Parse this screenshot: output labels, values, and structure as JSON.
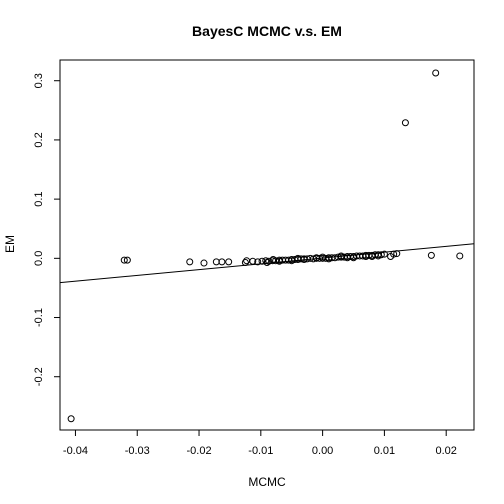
{
  "chart_data": {
    "type": "scatter",
    "title": "BayesC MCMC v.s. EM",
    "xlabel": "MCMC",
    "ylabel": "EM",
    "xlim": [
      -0.0425,
      0.0245
    ],
    "ylim": [
      -0.29,
      0.335
    ],
    "x_ticks": [
      -0.04,
      -0.03,
      -0.02,
      -0.01,
      0.0,
      0.01,
      0.02
    ],
    "x_tick_labels": [
      "-0.04",
      "-0.03",
      "-0.02",
      "-0.01",
      "0.00",
      "0.01",
      "0.02"
    ],
    "y_ticks": [
      -0.2,
      -0.1,
      0.0,
      0.1,
      0.2,
      0.3
    ],
    "y_tick_labels": [
      "-0.2",
      "-0.1",
      "0.0",
      "0.1",
      "0.2",
      "0.3"
    ],
    "grid": false,
    "marker": "open-circle",
    "regression_line": {
      "intercept": 0.0005,
      "slope": 0.98
    },
    "points": {
      "x": [
        -0.0407,
        -0.0321,
        -0.0316,
        -0.0215,
        -0.0192,
        -0.0172,
        -0.0163,
        -0.0152,
        -0.0125,
        -0.0123,
        -0.0113,
        -0.0105,
        -0.0098,
        -0.0092,
        -0.0087,
        -0.0081,
        -0.0076,
        -0.007,
        -0.0065,
        -0.006,
        -0.0055,
        -0.005,
        -0.0045,
        -0.004,
        -0.0035,
        -0.003,
        -0.0025,
        -0.002,
        -0.0015,
        -0.001,
        -0.0005,
        0.0,
        0.0005,
        0.001,
        0.0015,
        0.002,
        0.0025,
        0.003,
        0.0035,
        0.004,
        0.0045,
        0.005,
        0.0055,
        0.006,
        0.0065,
        0.007,
        0.0075,
        0.008,
        0.0085,
        0.009,
        0.0095,
        0.01,
        0.011,
        0.0115,
        0.012,
        0.0134,
        0.0176,
        0.0183,
        0.0222,
        -0.009,
        -0.007,
        -0.005,
        -0.003,
        -0.001,
        0.001,
        0.003,
        0.005,
        0.007,
        0.009,
        -0.008,
        -0.004,
        0.0,
        0.004,
        0.008
      ],
      "y": [
        -0.271,
        -0.003,
        -0.003,
        -0.006,
        -0.008,
        -0.006,
        -0.006,
        -0.006,
        -0.007,
        -0.004,
        -0.005,
        -0.006,
        -0.005,
        -0.004,
        -0.005,
        -0.004,
        -0.004,
        -0.003,
        -0.003,
        -0.003,
        -0.003,
        -0.002,
        -0.002,
        -0.002,
        -0.001,
        -0.001,
        -0.001,
        0.0,
        -0.001,
        0.0,
        0.0,
        0.0,
        0.0,
        0.001,
        0.001,
        0.001,
        0.002,
        0.002,
        0.002,
        0.003,
        0.003,
        0.003,
        0.004,
        0.004,
        0.004,
        0.005,
        0.005,
        0.005,
        0.006,
        0.006,
        0.006,
        0.007,
        0.003,
        0.007,
        0.008,
        0.229,
        0.005,
        0.313,
        0.004,
        -0.007,
        -0.005,
        -0.004,
        -0.002,
        0.001,
        -0.001,
        0.004,
        0.001,
        0.003,
        0.004,
        -0.002,
        0.0,
        0.002,
        0.001,
        0.003
      ]
    }
  }
}
